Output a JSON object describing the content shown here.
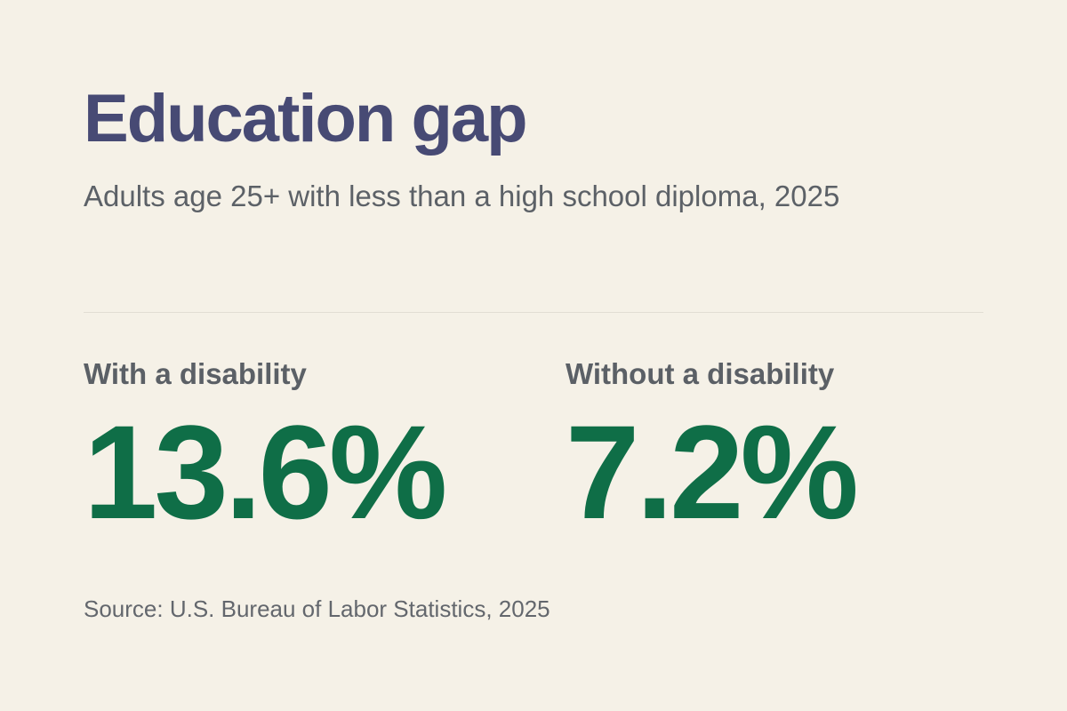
{
  "header": {
    "title": "Education gap",
    "subtitle": "Adults age 25+ with less than a high school diploma, 2025"
  },
  "stats": [
    {
      "label": "With a disability",
      "value": "13.6%"
    },
    {
      "label": "Without a disability",
      "value": "7.2%"
    }
  ],
  "footer": {
    "source": "Source: U.S. Bureau of Labor Statistics, 2025"
  },
  "colors": {
    "background": "#f5f1e7",
    "title": "#474a74",
    "text": "#5c6167",
    "accent": "#0f6e47",
    "divider": "#e2ded4"
  }
}
